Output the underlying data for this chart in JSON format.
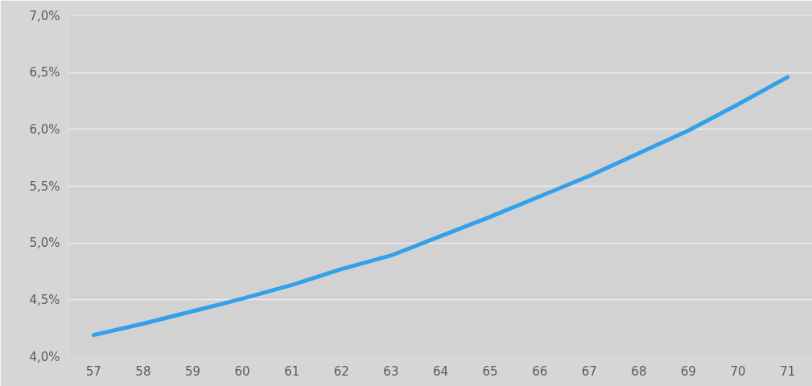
{
  "chart_data": {
    "type": "line",
    "categories": [
      "57",
      "58",
      "59",
      "60",
      "61",
      "62",
      "63",
      "64",
      "65",
      "66",
      "67",
      "68",
      "69",
      "70",
      "71"
    ],
    "series": [
      {
        "color": "#33a1ea",
        "values": [
          4.19,
          4.29,
          4.4,
          4.51,
          4.63,
          4.77,
          4.89,
          5.06,
          5.23,
          5.41,
          5.59,
          5.79,
          5.99,
          6.22,
          6.46
        ]
      }
    ],
    "ylim": [
      4.0,
      7.0
    ],
    "yticks": [
      {
        "value": 4.0,
        "label": "4,0%"
      },
      {
        "value": 4.5,
        "label": "4,5%"
      },
      {
        "value": 5.0,
        "label": "5,0%"
      },
      {
        "value": 5.5,
        "label": "5,5%"
      },
      {
        "value": 6.0,
        "label": "6,0%"
      },
      {
        "value": 6.5,
        "label": "6,5%"
      },
      {
        "value": 7.0,
        "label": "7,0%"
      }
    ],
    "grid": "y",
    "marker": "none",
    "line_style": "solid"
  }
}
